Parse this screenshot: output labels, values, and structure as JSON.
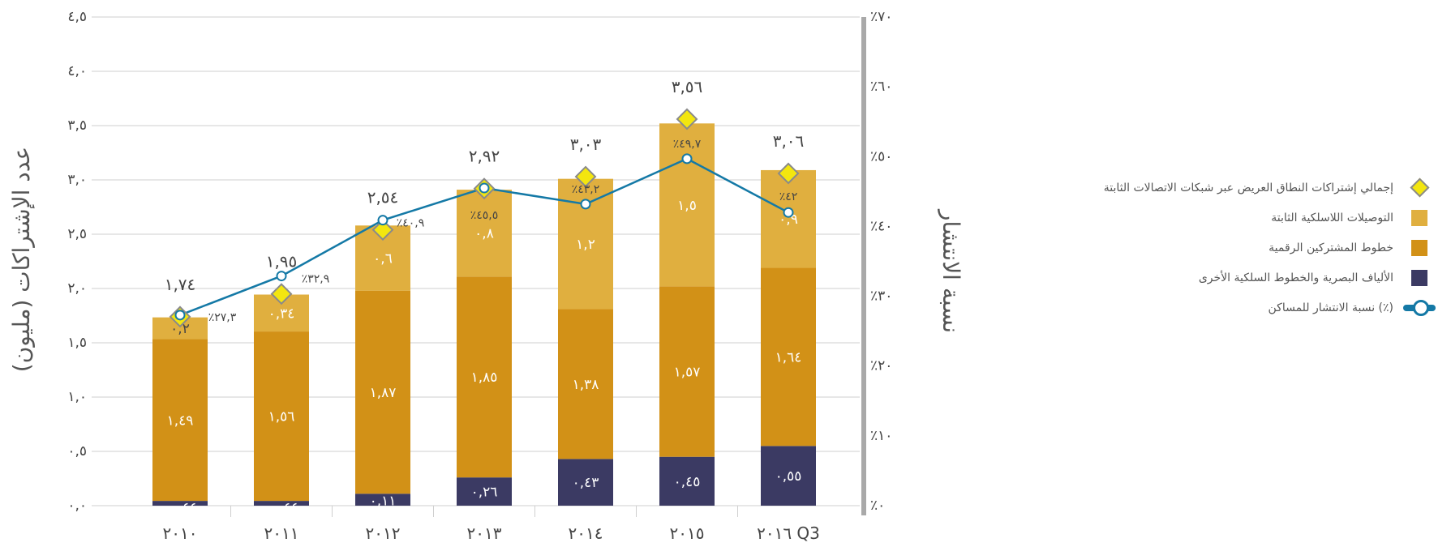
{
  "colors": {
    "other": "#3b3a63",
    "dsl": "#d29117",
    "wireless": "#e0af3f",
    "total_marker": "#f3e60f",
    "total_marker_border": "#8a8a8a",
    "penetration_line": "#1479a6",
    "grid": "#cfcfcf",
    "axis_text": "#444444",
    "label_light": "#ffffff",
    "label_dark": "#444444"
  },
  "chart_data": {
    "type": "bar",
    "stacked": true,
    "categories": [
      "٢٠١٠",
      "٢٠١١",
      "٢٠١٢",
      "٢٠١٣",
      "٢٠١٤",
      "٢٠١٥",
      "٢٠١٦ Q3"
    ],
    "series": [
      {
        "key": "other",
        "name": "الألياف البصرية والخطوط السلكية الأخرى",
        "values": [
          0.044,
          0.044,
          0.11,
          0.26,
          0.43,
          0.45,
          0.55
        ],
        "labels": [
          "٠,٠٤٤",
          "٠,٠٤٤",
          "٠,١١",
          "٠,٢٦",
          "٠,٤٣",
          "٠,٤٥",
          "٠,٥٥"
        ]
      },
      {
        "key": "dsl",
        "name": "خطوط المشتركين الرقمية",
        "values": [
          1.49,
          1.56,
          1.87,
          1.85,
          1.38,
          1.57,
          1.64
        ],
        "labels": [
          "١,٤٩",
          "١,٥٦",
          "١,٨٧",
          "١,٨٥",
          "١,٣٨",
          "١,٥٧",
          "١,٦٤"
        ]
      },
      {
        "key": "wireless",
        "name": "التوصيلات اللاسلكية الثابتة",
        "values": [
          0.2,
          0.34,
          0.6,
          0.8,
          1.2,
          1.5,
          0.9
        ],
        "labels": [
          "٠,٢",
          "٠,٣٤",
          "٠,٦",
          "٠,٨",
          "١,٢",
          "١,٥",
          "٠,٩"
        ]
      }
    ],
    "totals": {
      "name": "إجمالي إشتراكات النطاق العريض عبر شبكات الاتصالات الثابتة",
      "values": [
        1.74,
        1.95,
        2.54,
        2.92,
        3.03,
        3.56,
        3.06
      ],
      "labels": [
        "١,٧٤",
        "١,٩٥",
        "٢,٥٤",
        "٢,٩٢",
        "٣,٠٣",
        "٣,٥٦",
        "٣,٠٦"
      ]
    },
    "penetration": {
      "name": "(٪) نسبة الانتشار للمساكن",
      "values": [
        27.3,
        32.9,
        40.9,
        45.5,
        43.2,
        49.7,
        42
      ],
      "labels": [
        "٪٢٧,٣",
        "٪٣٢,٩",
        "٪٤٠,٩",
        "٪٤٥,٥",
        "٪٤٣,٢",
        "٪٤٩,٧",
        "٪٤٢"
      ]
    },
    "left_axis": {
      "label": "عدد الإشتراكات (مليون)",
      "min": 0,
      "max": 4.5,
      "ticks": [
        0,
        0.5,
        1,
        1.5,
        2,
        2.5,
        3,
        3.5,
        4,
        4.5
      ],
      "tick_labels": [
        "٠,٠",
        "٠,٥",
        "١,٠",
        "١,٥",
        "٢,٠",
        "٢,٥",
        "٣,٠",
        "٣,٥",
        "٤,٠",
        "٤,٥"
      ]
    },
    "right_axis": {
      "label": "نسبة الانتشار",
      "min": 0,
      "max": 70,
      "ticks": [
        0,
        10,
        20,
        30,
        40,
        50,
        60,
        70
      ],
      "tick_labels": [
        "٪٠",
        "٪١٠",
        "٪٢٠",
        "٪٣٠",
        "٪٤٠",
        "٪٥٠",
        "٪٦٠",
        "٪٧٠"
      ]
    },
    "grid": true,
    "legend_position": "right"
  },
  "legend": [
    {
      "key": "total",
      "label": "إجمالي إشتراكات النطاق العريض عبر شبكات الاتصالات الثابتة"
    },
    {
      "key": "wireless",
      "label": "التوصيلات اللاسلكية الثابتة"
    },
    {
      "key": "dsl",
      "label": "خطوط المشتركين الرقمية"
    },
    {
      "key": "other",
      "label": "الألياف البصرية والخطوط السلكية الأخرى"
    },
    {
      "key": "penetration",
      "label": "(٪) نسبة الانتشار للمساكن"
    }
  ]
}
